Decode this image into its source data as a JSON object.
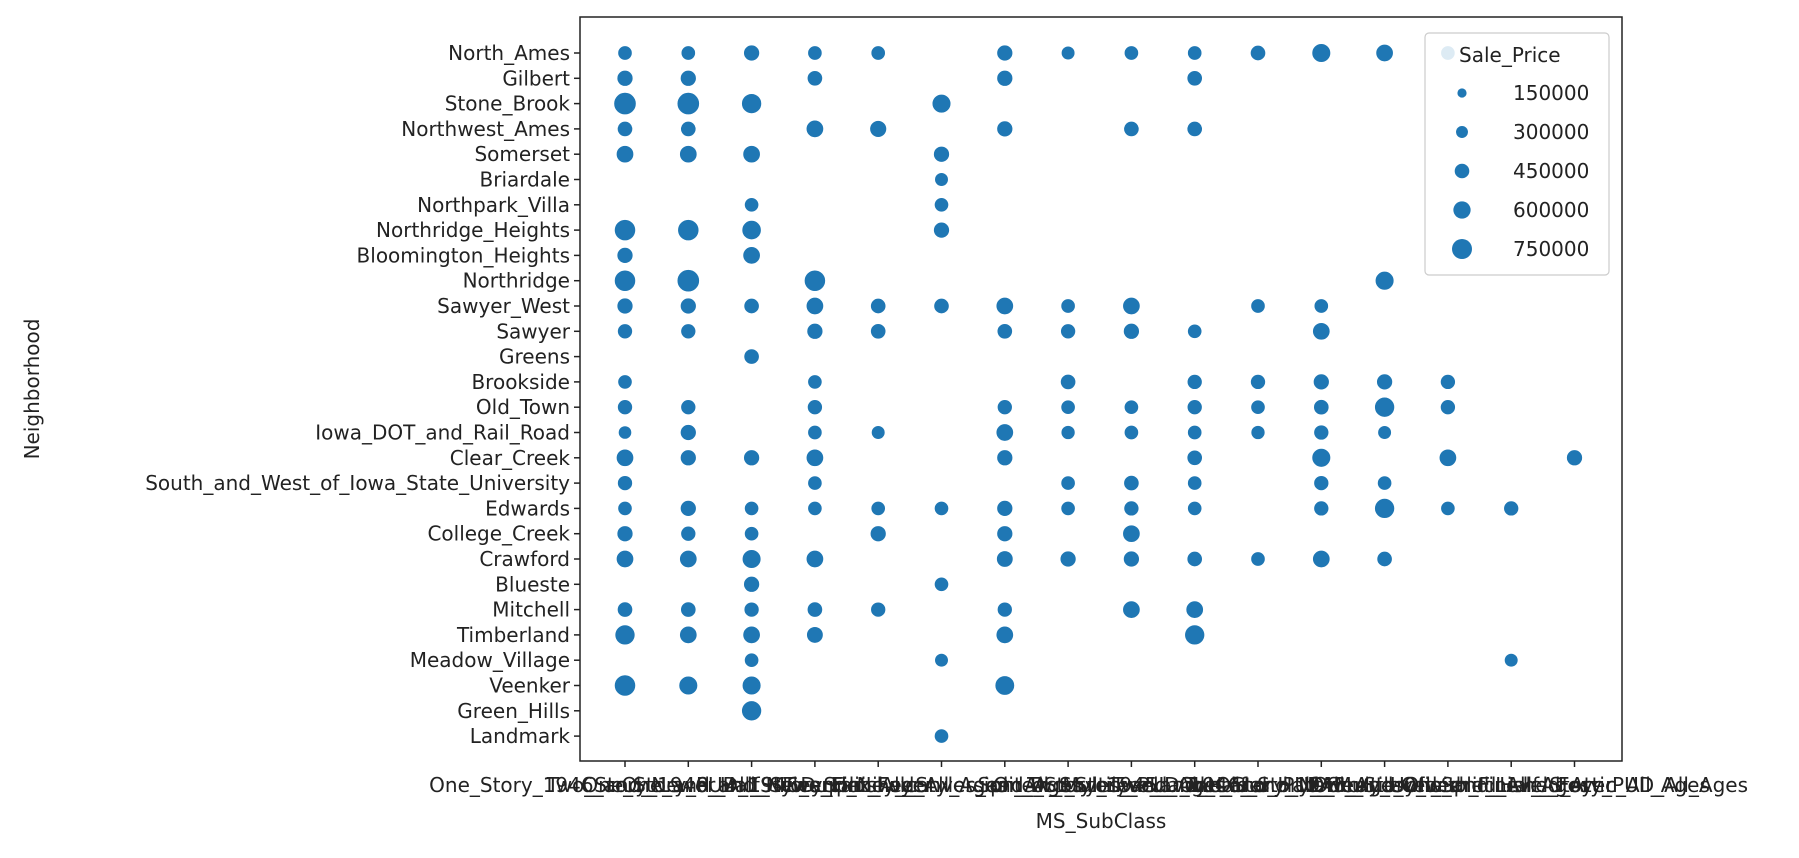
{
  "chart_data": {
    "type": "scatter",
    "xlabel": "MS_SubClass",
    "ylabel": "Neighborhood",
    "x_categories": [
      "One_Story_1946_and_Newer_All_Styles",
      "Two_Story_1946_and_Newer",
      "One_Story_PUD_1946_and_Newer",
      "One_and_Half_Story_Finished_All_Ages",
      "Split_Foyer",
      "Duplex_All_Styles_and_Ages",
      "Two_Family_conversion_All_Styles_and_Ages",
      "Split_or_Multilevel",
      "One_Story_1945_and_Older",
      "Two_Story_PUD_1946_and_Newer",
      "Two_and_Half_Story_All_Ages",
      "Two_Story_1945_and_Older",
      "One_and_Half_Story_Unfinished_All_Ages",
      "PUD_Multilevel_Split_Level_Foyer",
      "One_Story_with_Finished_Attic_All_Ages",
      "One_and_Half_Story_PUD_All_Ages"
    ],
    "y_categories": [
      "North_Ames",
      "Gilbert",
      "Stone_Brook",
      "Northwest_Ames",
      "Somerset",
      "Briardale",
      "Northpark_Villa",
      "Northridge_Heights",
      "Bloomington_Heights",
      "Northridge",
      "Sawyer_West",
      "Sawyer",
      "Greens",
      "Brookside",
      "Old_Town",
      "Iowa_DOT_and_Rail_Road",
      "Clear_Creek",
      "South_and_West_of_Iowa_State_University",
      "Edwards",
      "College_Creek",
      "Crawford",
      "Blueste",
      "Mitchell",
      "Timberland",
      "Meadow_Village",
      "Veenker",
      "Green_Hills",
      "Landmark"
    ],
    "size_legend": {
      "title": "Sale_Price",
      "values": [
        "150000",
        "300000",
        "450000",
        "600000",
        "750000"
      ]
    },
    "points": [
      {
        "x": 0,
        "y": 0,
        "size": 150000
      },
      {
        "x": 1,
        "y": 0,
        "size": 150000
      },
      {
        "x": 2,
        "y": 0,
        "size": 200000
      },
      {
        "x": 3,
        "y": 0,
        "size": 150000
      },
      {
        "x": 4,
        "y": 0,
        "size": 150000
      },
      {
        "x": 6,
        "y": 0,
        "size": 200000
      },
      {
        "x": 7,
        "y": 0,
        "size": 130000
      },
      {
        "x": 8,
        "y": 0,
        "size": 150000
      },
      {
        "x": 9,
        "y": 0,
        "size": 150000
      },
      {
        "x": 10,
        "y": 0,
        "size": 180000
      },
      {
        "x": 11,
        "y": 0,
        "size": 300000
      },
      {
        "x": 12,
        "y": 0,
        "size": 250000
      },
      {
        "x": 13,
        "y": 0,
        "size": 150000
      },
      {
        "x": 0,
        "y": 1,
        "size": 200000
      },
      {
        "x": 1,
        "y": 1,
        "size": 200000
      },
      {
        "x": 3,
        "y": 1,
        "size": 180000
      },
      {
        "x": 6,
        "y": 1,
        "size": 200000
      },
      {
        "x": 9,
        "y": 1,
        "size": 180000
      },
      {
        "x": 0,
        "y": 2,
        "size": 450000
      },
      {
        "x": 1,
        "y": 2,
        "size": 450000
      },
      {
        "x": 2,
        "y": 2,
        "size": 350000
      },
      {
        "x": 5,
        "y": 2,
        "size": 300000
      },
      {
        "x": 0,
        "y": 3,
        "size": 180000
      },
      {
        "x": 1,
        "y": 3,
        "size": 180000
      },
      {
        "x": 3,
        "y": 3,
        "size": 250000
      },
      {
        "x": 4,
        "y": 3,
        "size": 230000
      },
      {
        "x": 6,
        "y": 3,
        "size": 200000
      },
      {
        "x": 8,
        "y": 3,
        "size": 180000
      },
      {
        "x": 9,
        "y": 3,
        "size": 180000
      },
      {
        "x": 0,
        "y": 4,
        "size": 250000
      },
      {
        "x": 1,
        "y": 4,
        "size": 250000
      },
      {
        "x": 2,
        "y": 4,
        "size": 250000
      },
      {
        "x": 5,
        "y": 4,
        "size": 200000
      },
      {
        "x": 5,
        "y": 5,
        "size": 130000
      },
      {
        "x": 2,
        "y": 6,
        "size": 150000
      },
      {
        "x": 5,
        "y": 6,
        "size": 150000
      },
      {
        "x": 0,
        "y": 7,
        "size": 400000
      },
      {
        "x": 1,
        "y": 7,
        "size": 400000
      },
      {
        "x": 2,
        "y": 7,
        "size": 320000
      },
      {
        "x": 5,
        "y": 7,
        "size": 200000
      },
      {
        "x": 0,
        "y": 8,
        "size": 200000
      },
      {
        "x": 2,
        "y": 8,
        "size": 250000
      },
      {
        "x": 0,
        "y": 9,
        "size": 400000
      },
      {
        "x": 1,
        "y": 9,
        "size": 450000
      },
      {
        "x": 3,
        "y": 9,
        "size": 400000
      },
      {
        "x": 12,
        "y": 9,
        "size": 300000
      },
      {
        "x": 0,
        "y": 10,
        "size": 200000
      },
      {
        "x": 1,
        "y": 10,
        "size": 200000
      },
      {
        "x": 2,
        "y": 10,
        "size": 180000
      },
      {
        "x": 3,
        "y": 10,
        "size": 250000
      },
      {
        "x": 4,
        "y": 10,
        "size": 180000
      },
      {
        "x": 5,
        "y": 10,
        "size": 180000
      },
      {
        "x": 6,
        "y": 10,
        "size": 250000
      },
      {
        "x": 7,
        "y": 10,
        "size": 150000
      },
      {
        "x": 8,
        "y": 10,
        "size": 250000
      },
      {
        "x": 10,
        "y": 10,
        "size": 150000
      },
      {
        "x": 11,
        "y": 10,
        "size": 150000
      },
      {
        "x": 0,
        "y": 11,
        "size": 170000
      },
      {
        "x": 1,
        "y": 11,
        "size": 170000
      },
      {
        "x": 3,
        "y": 11,
        "size": 200000
      },
      {
        "x": 4,
        "y": 11,
        "size": 180000
      },
      {
        "x": 6,
        "y": 11,
        "size": 180000
      },
      {
        "x": 7,
        "y": 11,
        "size": 170000
      },
      {
        "x": 8,
        "y": 11,
        "size": 200000
      },
      {
        "x": 9,
        "y": 11,
        "size": 150000
      },
      {
        "x": 11,
        "y": 11,
        "size": 250000
      },
      {
        "x": 2,
        "y": 12,
        "size": 180000
      },
      {
        "x": 0,
        "y": 13,
        "size": 150000
      },
      {
        "x": 3,
        "y": 13,
        "size": 150000
      },
      {
        "x": 7,
        "y": 13,
        "size": 180000
      },
      {
        "x": 9,
        "y": 13,
        "size": 170000
      },
      {
        "x": 10,
        "y": 13,
        "size": 170000
      },
      {
        "x": 11,
        "y": 13,
        "size": 200000
      },
      {
        "x": 12,
        "y": 13,
        "size": 200000
      },
      {
        "x": 13,
        "y": 13,
        "size": 170000
      },
      {
        "x": 0,
        "y": 14,
        "size": 170000
      },
      {
        "x": 1,
        "y": 14,
        "size": 170000
      },
      {
        "x": 3,
        "y": 14,
        "size": 170000
      },
      {
        "x": 6,
        "y": 14,
        "size": 170000
      },
      {
        "x": 7,
        "y": 14,
        "size": 150000
      },
      {
        "x": 8,
        "y": 14,
        "size": 150000
      },
      {
        "x": 9,
        "y": 14,
        "size": 170000
      },
      {
        "x": 10,
        "y": 14,
        "size": 150000
      },
      {
        "x": 11,
        "y": 14,
        "size": 180000
      },
      {
        "x": 12,
        "y": 14,
        "size": 350000
      },
      {
        "x": 13,
        "y": 14,
        "size": 170000
      },
      {
        "x": 0,
        "y": 15,
        "size": 120000
      },
      {
        "x": 1,
        "y": 15,
        "size": 200000
      },
      {
        "x": 3,
        "y": 15,
        "size": 150000
      },
      {
        "x": 4,
        "y": 15,
        "size": 130000
      },
      {
        "x": 6,
        "y": 15,
        "size": 250000
      },
      {
        "x": 7,
        "y": 15,
        "size": 140000
      },
      {
        "x": 8,
        "y": 15,
        "size": 150000
      },
      {
        "x": 9,
        "y": 15,
        "size": 150000
      },
      {
        "x": 10,
        "y": 15,
        "size": 140000
      },
      {
        "x": 11,
        "y": 15,
        "size": 170000
      },
      {
        "x": 12,
        "y": 15,
        "size": 130000
      },
      {
        "x": 0,
        "y": 16,
        "size": 250000
      },
      {
        "x": 1,
        "y": 16,
        "size": 200000
      },
      {
        "x": 2,
        "y": 16,
        "size": 200000
      },
      {
        "x": 3,
        "y": 16,
        "size": 250000
      },
      {
        "x": 6,
        "y": 16,
        "size": 200000
      },
      {
        "x": 9,
        "y": 16,
        "size": 180000
      },
      {
        "x": 11,
        "y": 16,
        "size": 300000
      },
      {
        "x": 13,
        "y": 16,
        "size": 250000
      },
      {
        "x": 15,
        "y": 16,
        "size": 200000
      },
      {
        "x": 0,
        "y": 17,
        "size": 170000
      },
      {
        "x": 3,
        "y": 17,
        "size": 150000
      },
      {
        "x": 7,
        "y": 17,
        "size": 150000
      },
      {
        "x": 8,
        "y": 17,
        "size": 180000
      },
      {
        "x": 9,
        "y": 17,
        "size": 150000
      },
      {
        "x": 11,
        "y": 17,
        "size": 170000
      },
      {
        "x": 12,
        "y": 17,
        "size": 150000
      },
      {
        "x": 0,
        "y": 18,
        "size": 150000
      },
      {
        "x": 1,
        "y": 18,
        "size": 200000
      },
      {
        "x": 2,
        "y": 18,
        "size": 150000
      },
      {
        "x": 3,
        "y": 18,
        "size": 150000
      },
      {
        "x": 4,
        "y": 18,
        "size": 150000
      },
      {
        "x": 5,
        "y": 18,
        "size": 150000
      },
      {
        "x": 6,
        "y": 18,
        "size": 200000
      },
      {
        "x": 7,
        "y": 18,
        "size": 150000
      },
      {
        "x": 8,
        "y": 18,
        "size": 170000
      },
      {
        "x": 9,
        "y": 18,
        "size": 150000
      },
      {
        "x": 11,
        "y": 18,
        "size": 170000
      },
      {
        "x": 12,
        "y": 18,
        "size": 350000
      },
      {
        "x": 13,
        "y": 18,
        "size": 150000
      },
      {
        "x": 14,
        "y": 18,
        "size": 170000
      },
      {
        "x": 0,
        "y": 19,
        "size": 200000
      },
      {
        "x": 1,
        "y": 19,
        "size": 170000
      },
      {
        "x": 2,
        "y": 19,
        "size": 150000
      },
      {
        "x": 4,
        "y": 19,
        "size": 200000
      },
      {
        "x": 6,
        "y": 19,
        "size": 200000
      },
      {
        "x": 8,
        "y": 19,
        "size": 250000
      },
      {
        "x": 0,
        "y": 20,
        "size": 250000
      },
      {
        "x": 1,
        "y": 20,
        "size": 250000
      },
      {
        "x": 2,
        "y": 20,
        "size": 300000
      },
      {
        "x": 3,
        "y": 20,
        "size": 250000
      },
      {
        "x": 6,
        "y": 20,
        "size": 220000
      },
      {
        "x": 7,
        "y": 20,
        "size": 200000
      },
      {
        "x": 8,
        "y": 20,
        "size": 200000
      },
      {
        "x": 9,
        "y": 20,
        "size": 180000
      },
      {
        "x": 10,
        "y": 20,
        "size": 150000
      },
      {
        "x": 11,
        "y": 20,
        "size": 250000
      },
      {
        "x": 12,
        "y": 20,
        "size": 180000
      },
      {
        "x": 2,
        "y": 21,
        "size": 200000
      },
      {
        "x": 5,
        "y": 21,
        "size": 150000
      },
      {
        "x": 0,
        "y": 22,
        "size": 180000
      },
      {
        "x": 1,
        "y": 22,
        "size": 180000
      },
      {
        "x": 2,
        "y": 22,
        "size": 170000
      },
      {
        "x": 3,
        "y": 22,
        "size": 180000
      },
      {
        "x": 4,
        "y": 22,
        "size": 170000
      },
      {
        "x": 6,
        "y": 22,
        "size": 170000
      },
      {
        "x": 8,
        "y": 22,
        "size": 250000
      },
      {
        "x": 9,
        "y": 22,
        "size": 250000
      },
      {
        "x": 0,
        "y": 23,
        "size": 350000
      },
      {
        "x": 1,
        "y": 23,
        "size": 250000
      },
      {
        "x": 2,
        "y": 23,
        "size": 250000
      },
      {
        "x": 3,
        "y": 23,
        "size": 220000
      },
      {
        "x": 6,
        "y": 23,
        "size": 250000
      },
      {
        "x": 9,
        "y": 23,
        "size": 350000
      },
      {
        "x": 2,
        "y": 24,
        "size": 150000
      },
      {
        "x": 5,
        "y": 24,
        "size": 130000
      },
      {
        "x": 14,
        "y": 24,
        "size": 130000
      },
      {
        "x": 0,
        "y": 25,
        "size": 400000
      },
      {
        "x": 1,
        "y": 25,
        "size": 300000
      },
      {
        "x": 2,
        "y": 25,
        "size": 300000
      },
      {
        "x": 6,
        "y": 25,
        "size": 330000
      },
      {
        "x": 2,
        "y": 26,
        "size": 350000
      },
      {
        "x": 5,
        "y": 27,
        "size": 150000
      }
    ]
  }
}
